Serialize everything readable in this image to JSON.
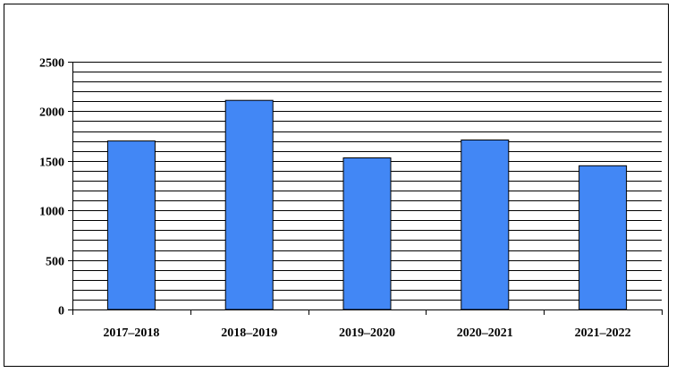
{
  "chart_data": {
    "type": "bar",
    "title": "",
    "xlabel": "",
    "ylabel": "",
    "categories": [
      "2017–2018",
      "2018–2019",
      "2019–2020",
      "2020–2021",
      "2021–2022"
    ],
    "values": [
      1700,
      2110,
      1530,
      1710,
      1450
    ],
    "ylim": [
      0,
      2500
    ],
    "yticks": [
      0,
      500,
      1000,
      1500,
      2000,
      2500
    ],
    "minor_gridline_step": 100,
    "grid": true,
    "legend": "none",
    "colors": {
      "bar": "#4287F5",
      "bar_stroke": "#000000",
      "gridline": "#000000",
      "axis": "#000000"
    }
  }
}
